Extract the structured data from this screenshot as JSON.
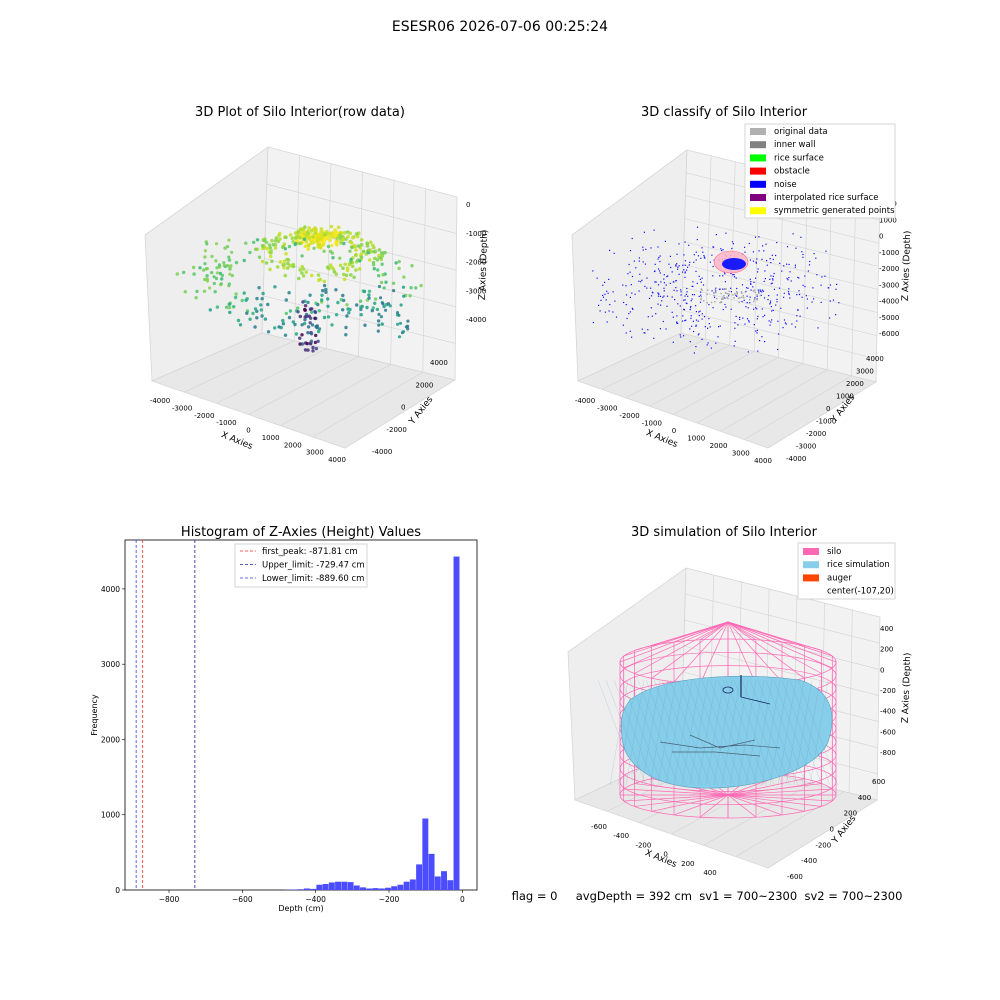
{
  "suptitle": "ESESR06 2026-07-06 00:25:24",
  "colors": {
    "hist_bar": "#4b4bff",
    "first_peak": "#ff2a2a",
    "upper_limit": "#2020a0",
    "lower_limit": "#3a3aff",
    "silo": "#ff69b4",
    "rice": "#87ceeb",
    "auger": "#ff4500"
  },
  "panel1": {
    "title": "3D Plot of Silo Interior(row data)",
    "xlabel": "X Axies",
    "ylabel": "Y Axies",
    "zlabel": "Z Axies (Depth)",
    "x_ticks": [
      "-4000",
      "-3000",
      "-2000",
      "-1000",
      "0",
      "1000",
      "2000",
      "3000",
      "4000"
    ],
    "y_ticks": [
      "-4000",
      "-2000",
      "0",
      "2000",
      "4000"
    ],
    "z_ticks": [
      "0",
      "-1000",
      "-2000",
      "-3000",
      "-4000"
    ]
  },
  "panel2": {
    "title": "3D classify of Silo Interior",
    "xlabel": "X Axies",
    "ylabel": "Y Axies",
    "zlabel": "Z Axies (Depth)",
    "x_ticks": [
      "-4000",
      "-3000",
      "-2000",
      "-1000",
      "0",
      "1000",
      "2000",
      "3000",
      "4000"
    ],
    "y_ticks": [
      "-4000",
      "-3000",
      "-2000",
      "-1000",
      "0",
      "1000",
      "2000",
      "3000",
      "4000"
    ],
    "z_ticks": [
      "2000",
      "1000",
      "0",
      "-1000",
      "-2000",
      "-3000",
      "-4000",
      "-5000",
      "-6000"
    ],
    "legend": [
      {
        "label": "original data",
        "color": "#b0b0b0"
      },
      {
        "label": "inner wall",
        "color": "#808080"
      },
      {
        "label": "rice surface",
        "color": "#00ff00"
      },
      {
        "label": "obstacle",
        "color": "#ff0000"
      },
      {
        "label": "noise",
        "color": "#0000ff"
      },
      {
        "label": "interpolated rice surface",
        "color": "#800080"
      },
      {
        "label": "symmetric generated points",
        "color": "#ffff00"
      }
    ]
  },
  "chart_data": [
    {
      "type": "bar",
      "title": "Histogram of Z-Axies (Height) Values",
      "xlabel": "Depth (cm)",
      "ylabel": "Frequency",
      "xlim": [
        -920,
        40
      ],
      "ylim": [
        0,
        4650
      ],
      "x_ticks": [
        -800,
        -600,
        -400,
        -200,
        0
      ],
      "y_ticks": [
        0,
        1000,
        2000,
        3000,
        4000
      ],
      "bin_width": 17,
      "bins": [
        {
          "x": -483,
          "count": 5
        },
        {
          "x": -466,
          "count": 5
        },
        {
          "x": -449,
          "count": 10
        },
        {
          "x": -432,
          "count": 20
        },
        {
          "x": -415,
          "count": 15
        },
        {
          "x": -398,
          "count": 70
        },
        {
          "x": -381,
          "count": 80
        },
        {
          "x": -364,
          "count": 100
        },
        {
          "x": -347,
          "count": 110
        },
        {
          "x": -330,
          "count": 110
        },
        {
          "x": -313,
          "count": 105
        },
        {
          "x": -296,
          "count": 60
        },
        {
          "x": -279,
          "count": 35
        },
        {
          "x": -262,
          "count": 20
        },
        {
          "x": -245,
          "count": 25
        },
        {
          "x": -228,
          "count": 20
        },
        {
          "x": -211,
          "count": 30
        },
        {
          "x": -194,
          "count": 50
        },
        {
          "x": -177,
          "count": 70
        },
        {
          "x": -160,
          "count": 110
        },
        {
          "x": -143,
          "count": 140
        },
        {
          "x": -126,
          "count": 340
        },
        {
          "x": -109,
          "count": 950
        },
        {
          "x": -92,
          "count": 480
        },
        {
          "x": -75,
          "count": 180
        },
        {
          "x": -58,
          "count": 250
        },
        {
          "x": -41,
          "count": 130
        },
        {
          "x": -24,
          "count": 4430
        }
      ],
      "vlines": [
        {
          "x": -871.81,
          "label": "first_peak: -871.81 cm",
          "style": "red"
        },
        {
          "x": -729.47,
          "label": "Upper_limit: -729.47 cm",
          "style": "navy"
        },
        {
          "x": -889.6,
          "label": "Lower_limit: -889.60 cm",
          "style": "blue"
        }
      ]
    }
  ],
  "panel4": {
    "title": "3D simulation of Silo Interior",
    "xlabel": "X Axies",
    "ylabel": "Y Axies",
    "zlabel": "Z Axies (Depth)",
    "x_ticks": [
      "-600",
      "-400",
      "-200",
      "0",
      "200",
      "400"
    ],
    "y_ticks": [
      "-600",
      "-400",
      "-200",
      "0",
      "200",
      "400",
      "600"
    ],
    "z_ticks": [
      "400",
      "200",
      "0",
      "-200",
      "-400",
      "-600",
      "-800"
    ],
    "legend": [
      {
        "label": "silo",
        "color": "#ff69b4"
      },
      {
        "label": "rice simulation",
        "color": "#87ceeb"
      },
      {
        "label": "auger",
        "color": "#ff4500"
      },
      {
        "label": "center(-107,20)",
        "color": ""
      }
    ]
  },
  "footer": "flag = 0     avgDepth = 392 cm  sv1 = 700~2300  sv2 = 700~2300"
}
